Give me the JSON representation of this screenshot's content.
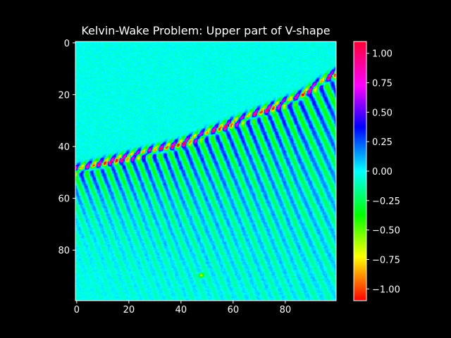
{
  "chart_data": {
    "type": "heatmap",
    "title": "Kelvin-Wake Problem: Upper part of V-shape",
    "xlabel": "",
    "ylabel": "",
    "x_range": [
      0,
      99
    ],
    "y_range": [
      0,
      99
    ],
    "y_axis_inverted": true,
    "x_ticks": [
      0,
      20,
      40,
      60,
      80
    ],
    "y_ticks": [
      0,
      20,
      40,
      60,
      80
    ],
    "grid": false,
    "colormap": "hsv (red → yellow → green → cyan → blue → magenta → pink)",
    "colorbar": {
      "range": [
        -1.1,
        1.1
      ],
      "ticks": [
        1.0,
        0.75,
        0.5,
        0.25,
        0.0,
        -0.25,
        -0.5,
        -0.75,
        -1.0
      ],
      "tick_labels": [
        "1.00",
        "0.75",
        "0.50",
        "0.25",
        "0.00",
        "−0.25",
        "−0.50",
        "−0.75",
        "−1.00"
      ]
    },
    "field": {
      "background_value": 0.0,
      "wave_crest_line": {
        "description": "bright diagonal crest of the wake, from left-center to upper right",
        "points": [
          [
            0,
            49
          ],
          [
            20,
            44
          ],
          [
            40,
            39
          ],
          [
            55,
            33
          ],
          [
            70,
            27
          ],
          [
            85,
            21
          ],
          [
            99,
            12
          ]
        ],
        "peak_value": 0.9,
        "trough_value": -0.9
      },
      "transverse_waves": {
        "description": "vertical banded oscillations below the crest, fading downward",
        "wavelength": 4,
        "amplitude_near_crest": 0.45,
        "decay_depth_at_left": 15,
        "decay_depth_at_right": 55
      },
      "source_point": {
        "x": 48,
        "y": 90,
        "value": -0.8
      }
    }
  }
}
